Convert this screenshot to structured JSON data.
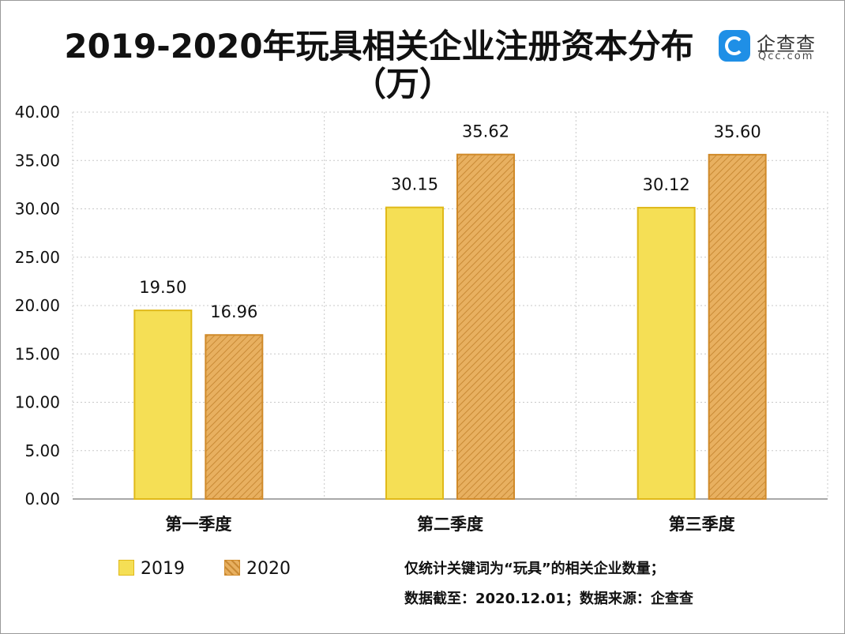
{
  "header": {
    "title_line1": "2019-2020年玩具相关企业注册资本分布",
    "title_line2": "（万）"
  },
  "logo": {
    "name": "企查查",
    "sub": "Qcc.com",
    "icon": "qcc-logo-icon",
    "color": "#1f8fe6"
  },
  "chart_data": {
    "type": "bar",
    "title": "2019-2020年玩具相关企业注册资本分布（万）",
    "xlabel": "",
    "ylabel": "",
    "categories": [
      "第一季度",
      "第二季度",
      "第三季度"
    ],
    "series": [
      {
        "name": "2019",
        "values": [
          19.5,
          30.15,
          30.12
        ],
        "labels": [
          "19.50",
          "30.15",
          "30.12"
        ],
        "color": "#f5df55",
        "border": "#e0b91a"
      },
      {
        "name": "2020",
        "values": [
          16.96,
          35.62,
          35.6
        ],
        "labels": [
          "16.96",
          "35.62",
          "35.60"
        ],
        "color": "#e8b060",
        "border": "#d08a2a"
      }
    ],
    "ylim": [
      0,
      40
    ],
    "yticks": [
      "0.00",
      "5.00",
      "10.00",
      "15.00",
      "20.00",
      "25.00",
      "30.00",
      "35.00",
      "40.00"
    ],
    "grid": true,
    "legend": "bottom-left"
  },
  "legend": {
    "items": [
      {
        "label": "2019"
      },
      {
        "label": "2020"
      }
    ]
  },
  "notes": {
    "line1": "仅统计关键词为“玩具”的相关企业数量；",
    "line2": "数据截至：2020.12.01；数据来源：企查查"
  }
}
